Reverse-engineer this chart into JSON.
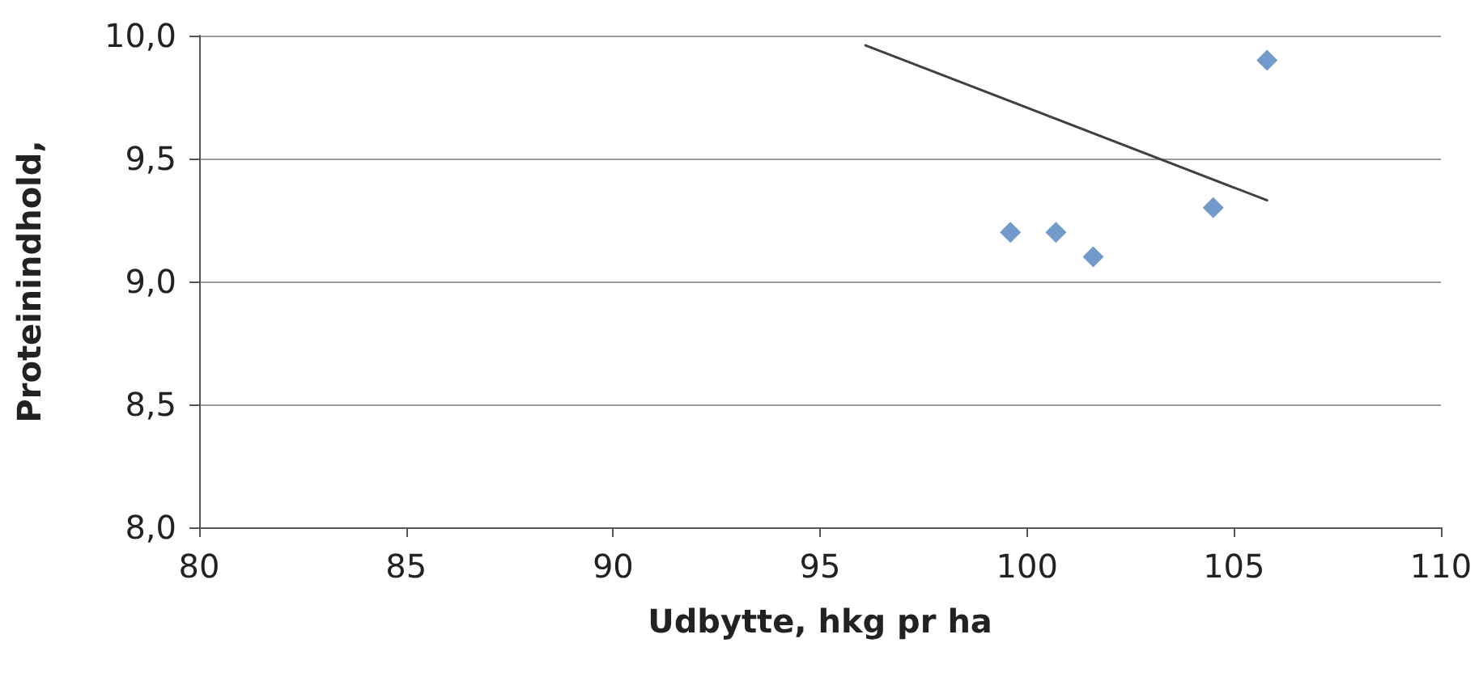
{
  "chart_data": {
    "type": "scatter",
    "xlabel": "Udbytte, hkg pr ha",
    "ylabel": "Proteinindhold,",
    "xlim": [
      80,
      110
    ],
    "xticks": [
      80,
      85,
      90,
      95,
      100,
      105,
      110
    ],
    "ylim": [
      8,
      10
    ],
    "yticks": [
      {
        "value": 8,
        "label": "8,0"
      },
      {
        "value": 8.5,
        "label": "8,5"
      },
      {
        "value": 9,
        "label": "9,0"
      },
      {
        "value": 9.5,
        "label": "9,5"
      },
      {
        "value": 10,
        "label": "10,0"
      }
    ],
    "grid": "y",
    "marker": "diamond",
    "series": [
      {
        "color": "#4f81bd",
        "x": [
          99.6,
          100.7,
          101.6,
          104.5,
          105.8
        ],
        "values": [
          9.2,
          9.2,
          9.1,
          9.3,
          9.9
        ]
      },
      {
        "type": "line",
        "color": "#404040",
        "marker": "none",
        "line_style": "solid",
        "x": [
          96.1,
          105.8
        ],
        "values": [
          9.96,
          9.33
        ]
      }
    ]
  }
}
